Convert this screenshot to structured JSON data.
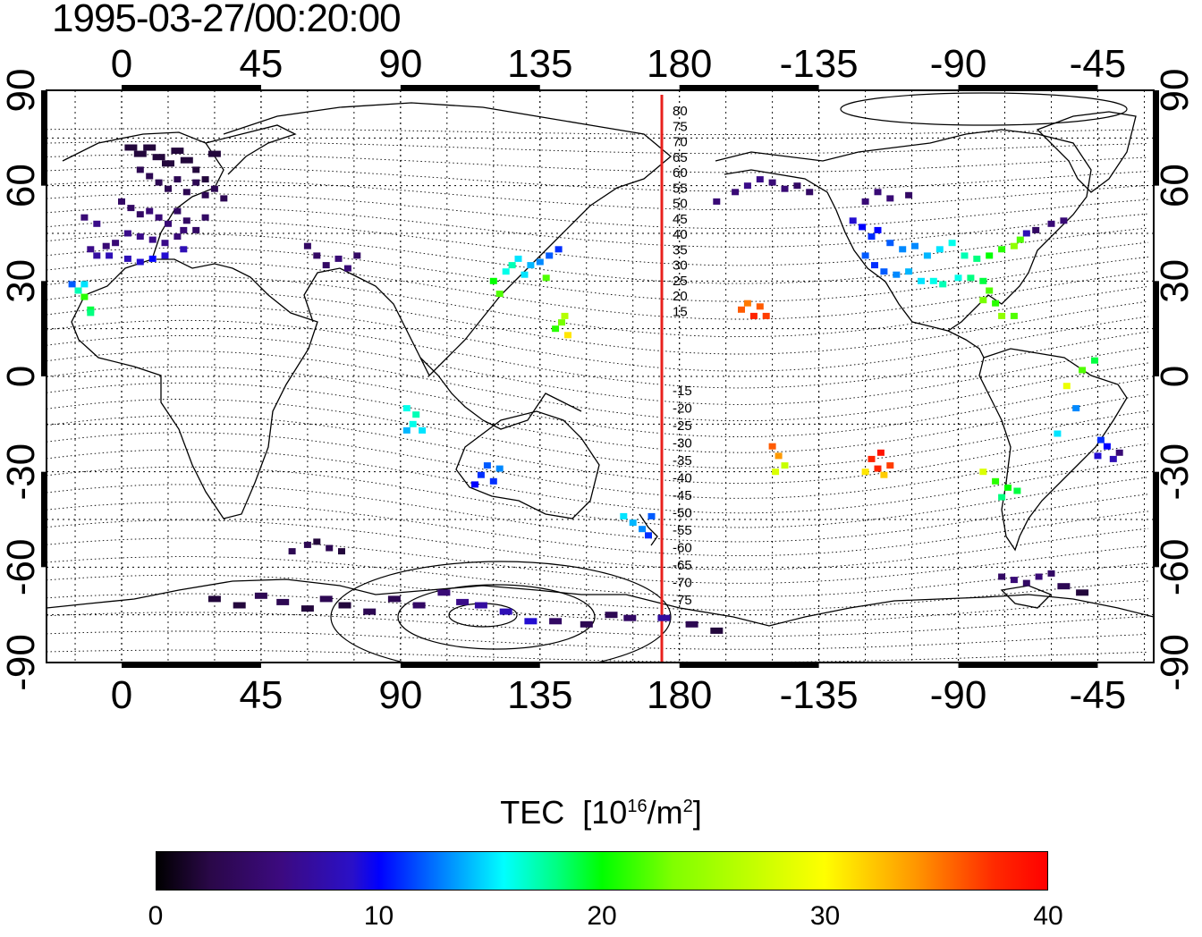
{
  "title": "1995-03-27/00:20:00",
  "map": {
    "lon_labels_top": [
      "0",
      "45",
      "90",
      "135",
      "180",
      "-135",
      "-90",
      "-45"
    ],
    "lon_labels_bottom": [
      "0",
      "45",
      "90",
      "135",
      "180",
      "-135",
      "-90",
      "-45"
    ],
    "lat_labels_left": [
      "90",
      "60",
      "30",
      "0",
      "-30",
      "-60",
      "-90"
    ],
    "lat_labels_right": [
      "90",
      "60",
      "30",
      "0",
      "-30",
      "-60",
      "-90"
    ],
    "contour_labels": [
      "80",
      "75",
      "70",
      "65",
      "60",
      "55",
      "50",
      "45",
      "40",
      "35",
      "30",
      "25",
      "20",
      "15",
      "-15",
      "-20",
      "-25",
      "-30",
      "-35",
      "-40",
      "-45",
      "-50",
      "-55",
      "-60",
      "-65",
      "-70",
      "-75"
    ],
    "meridian_line_lon": 172,
    "meridian_line_color": "#e8201c"
  },
  "colorbar": {
    "title": "TEC",
    "unit_base": "[10",
    "unit_exp": "16",
    "unit_mid": "/m",
    "unit_exp2": "2",
    "unit_end": "]",
    "ticks": [
      "0",
      "10",
      "20",
      "30",
      "40"
    ],
    "min": 0,
    "max": 40
  },
  "chart_data": {
    "type": "scatter",
    "title": "1995-03-27/00:20:00",
    "xlabel": "",
    "ylabel": "",
    "xlim": [
      -22,
      322
    ],
    "ylim": [
      -90,
      90
    ],
    "grid": true,
    "color_scale": {
      "label": "TEC [10^16/m^2]",
      "range": [
        0,
        40
      ]
    },
    "points_lon_lat_tec": [
      [
        3,
        72,
        2
      ],
      [
        6,
        70,
        2
      ],
      [
        9,
        72,
        2
      ],
      [
        12,
        69,
        2
      ],
      [
        15,
        67,
        2
      ],
      [
        18,
        71,
        2
      ],
      [
        21,
        68,
        2
      ],
      [
        24,
        65,
        2
      ],
      [
        27,
        62,
        2
      ],
      [
        30,
        70,
        2
      ],
      [
        6,
        65,
        3
      ],
      [
        9,
        63,
        3
      ],
      [
        12,
        61,
        3
      ],
      [
        15,
        59,
        3
      ],
      [
        18,
        62,
        3
      ],
      [
        21,
        58,
        3
      ],
      [
        24,
        61,
        3
      ],
      [
        27,
        57,
        3
      ],
      [
        30,
        59,
        3
      ],
      [
        33,
        56,
        3
      ],
      [
        0,
        55,
        4
      ],
      [
        3,
        53,
        4
      ],
      [
        6,
        51,
        4
      ],
      [
        9,
        52,
        5
      ],
      [
        12,
        50,
        5
      ],
      [
        15,
        48,
        5
      ],
      [
        18,
        52,
        4
      ],
      [
        21,
        49,
        4
      ],
      [
        24,
        46,
        4
      ],
      [
        27,
        50,
        4
      ],
      [
        -5,
        41,
        5
      ],
      [
        -2,
        42,
        5
      ],
      [
        2,
        45,
        6
      ],
      [
        6,
        44,
        6
      ],
      [
        10,
        43,
        6
      ],
      [
        14,
        42,
        6
      ],
      [
        18,
        44,
        5
      ],
      [
        20,
        46,
        5
      ],
      [
        -8,
        48,
        6
      ],
      [
        -12,
        50,
        5
      ],
      [
        -10,
        40,
        6
      ],
      [
        -8,
        38,
        7
      ],
      [
        -4,
        38,
        8
      ],
      [
        2,
        37,
        8
      ],
      [
        6,
        36,
        9
      ],
      [
        10,
        37,
        10
      ],
      [
        14,
        38,
        9
      ],
      [
        20,
        40,
        8
      ],
      [
        -16,
        29,
        12
      ],
      [
        -14,
        27,
        17
      ],
      [
        -12,
        25,
        21
      ],
      [
        -10,
        21,
        19
      ],
      [
        -12,
        29,
        15
      ],
      [
        60,
        41,
        4
      ],
      [
        63,
        38,
        4
      ],
      [
        66,
        35,
        4
      ],
      [
        70,
        37,
        5
      ],
      [
        73,
        34,
        5
      ],
      [
        76,
        38,
        4
      ],
      [
        -10,
        20,
        18
      ],
      [
        120,
        30,
        20
      ],
      [
        124,
        33,
        16
      ],
      [
        126,
        35,
        17
      ],
      [
        128,
        37,
        15
      ],
      [
        130,
        32,
        15
      ],
      [
        132,
        35,
        14
      ],
      [
        135,
        36,
        13
      ],
      [
        138,
        38,
        12
      ],
      [
        141,
        40,
        11
      ],
      [
        137,
        31,
        22
      ],
      [
        122,
        26,
        22
      ],
      [
        140,
        15,
        21
      ],
      [
        142,
        17,
        23
      ],
      [
        144,
        13,
        31
      ],
      [
        143,
        19,
        26
      ],
      [
        92,
        -10,
        16
      ],
      [
        95,
        -12,
        17
      ],
      [
        94,
        -15,
        16
      ],
      [
        97,
        -17,
        15
      ],
      [
        92,
        -17,
        14
      ],
      [
        118,
        -28,
        12
      ],
      [
        116,
        -31,
        11
      ],
      [
        120,
        -33,
        11
      ],
      [
        114,
        -34,
        10
      ],
      [
        122,
        -29,
        13
      ],
      [
        162,
        -44,
        15
      ],
      [
        165,
        -46,
        14
      ],
      [
        168,
        -48,
        13
      ],
      [
        171,
        -44,
        12
      ],
      [
        170,
        -50,
        11
      ],
      [
        -168,
        55,
        5
      ],
      [
        -162,
        58,
        5
      ],
      [
        -158,
        60,
        6
      ],
      [
        -154,
        62,
        6
      ],
      [
        -150,
        61,
        5
      ],
      [
        -146,
        59,
        5
      ],
      [
        -142,
        60,
        4
      ],
      [
        -138,
        58,
        4
      ],
      [
        -120,
        55,
        5
      ],
      [
        -116,
        58,
        5
      ],
      [
        -112,
        56,
        5
      ],
      [
        -106,
        57,
        4
      ],
      [
        -124,
        49,
        9
      ],
      [
        -121,
        47,
        10
      ],
      [
        -118,
        44,
        11
      ],
      [
        -116,
        46,
        10
      ],
      [
        -112,
        42,
        12
      ],
      [
        -108,
        40,
        13
      ],
      [
        -104,
        41,
        13
      ],
      [
        -100,
        38,
        14
      ],
      [
        -96,
        40,
        15
      ],
      [
        -92,
        42,
        16
      ],
      [
        -88,
        38,
        17
      ],
      [
        -84,
        37,
        18
      ],
      [
        -80,
        38,
        20
      ],
      [
        -76,
        40,
        21
      ],
      [
        -72,
        41,
        24
      ],
      [
        -70,
        43,
        22
      ],
      [
        -120,
        38,
        12
      ],
      [
        -117,
        35,
        11
      ],
      [
        -114,
        33,
        12
      ],
      [
        -110,
        32,
        13
      ],
      [
        -106,
        33,
        14
      ],
      [
        -102,
        30,
        15
      ],
      [
        -98,
        30,
        16
      ],
      [
        -95,
        29,
        17
      ],
      [
        -90,
        31,
        16
      ],
      [
        -86,
        31,
        18
      ],
      [
        -82,
        30,
        19
      ],
      [
        -80,
        27,
        22
      ],
      [
        -82,
        24,
        23
      ],
      [
        -78,
        23,
        21
      ],
      [
        -76,
        19,
        24
      ],
      [
        -72,
        19,
        22
      ],
      [
        -65,
        46,
        4
      ],
      [
        -60,
        48,
        5
      ],
      [
        -56,
        49,
        5
      ],
      [
        -68,
        45,
        8
      ],
      [
        -160,
        21,
        36
      ],
      [
        -156,
        19,
        38
      ],
      [
        -158,
        23,
        35
      ],
      [
        -154,
        22,
        36
      ],
      [
        -152,
        19,
        37
      ],
      [
        -150,
        -22,
        36
      ],
      [
        -148,
        -25,
        34
      ],
      [
        -146,
        -28,
        27
      ],
      [
        -149,
        -30,
        28
      ],
      [
        -118,
        -26,
        38
      ],
      [
        -115,
        -24,
        39
      ],
      [
        -112,
        -28,
        37
      ],
      [
        -116,
        -29,
        38
      ],
      [
        -120,
        -30,
        31
      ],
      [
        -114,
        -31,
        32
      ],
      [
        -82,
        -30,
        28
      ],
      [
        -78,
        -33,
        21
      ],
      [
        -74,
        -35,
        20
      ],
      [
        -71,
        -36,
        19
      ],
      [
        -76,
        -38,
        18
      ],
      [
        -58,
        -18,
        15
      ],
      [
        -52,
        -10,
        13
      ],
      [
        -44,
        -20,
        11
      ],
      [
        -42,
        -22,
        10
      ],
      [
        -45,
        -25,
        9
      ],
      [
        -38,
        -24,
        5
      ],
      [
        -40,
        -26,
        8
      ],
      [
        -55,
        -3,
        29
      ],
      [
        -50,
        2,
        22
      ],
      [
        -46,
        5,
        19
      ],
      [
        55,
        -55,
        3
      ],
      [
        60,
        -53,
        3
      ],
      [
        63,
        -52,
        2
      ],
      [
        67,
        -54,
        3
      ],
      [
        71,
        -55,
        2
      ],
      [
        30,
        -70,
        2
      ],
      [
        38,
        -72,
        2
      ],
      [
        45,
        -69,
        3
      ],
      [
        52,
        -71,
        3
      ],
      [
        60,
        -73,
        2
      ],
      [
        66,
        -70,
        3
      ],
      [
        72,
        -72,
        2
      ],
      [
        80,
        -74,
        3
      ],
      [
        88,
        -70,
        3
      ],
      [
        96,
        -72,
        4
      ],
      [
        104,
        -68,
        5
      ],
      [
        110,
        -71,
        6
      ],
      [
        116,
        -72,
        7
      ],
      [
        124,
        -74,
        8
      ],
      [
        132,
        -77,
        9
      ],
      [
        140,
        -77,
        4
      ],
      [
        150,
        -78,
        3
      ],
      [
        158,
        -75,
        3
      ],
      [
        164,
        -76,
        4
      ],
      [
        175,
        -76,
        7
      ],
      [
        184,
        -78,
        3
      ],
      [
        192,
        -80,
        2
      ],
      [
        -76,
        -63,
        4
      ],
      [
        -72,
        -64,
        5
      ],
      [
        -68,
        -65,
        4
      ],
      [
        -64,
        -63,
        5
      ],
      [
        -60,
        -62,
        4
      ],
      [
        -56,
        -66,
        3
      ],
      [
        -50,
        -68,
        2
      ]
    ]
  }
}
